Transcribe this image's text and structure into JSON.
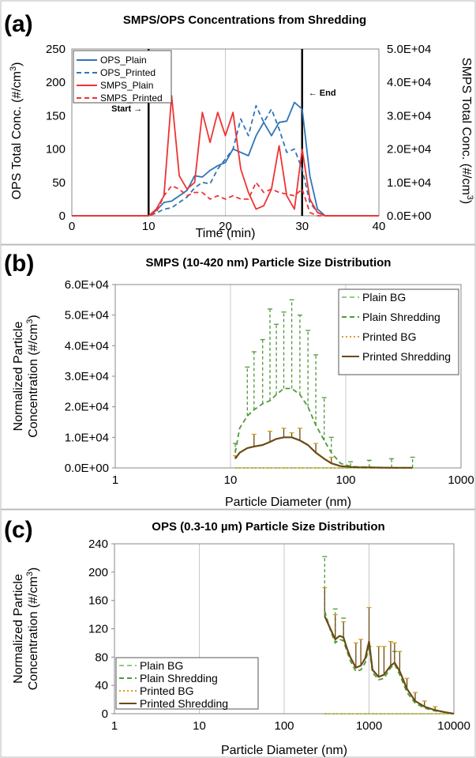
{
  "chart_data": [
    {
      "panel": "(a)",
      "type": "line",
      "title": "SMPS/OPS Concentrations from Shredding",
      "xlabel": "Time (min)",
      "ylabel_left": "OPS Total Conc. (#/cm³)",
      "ylabel_right": "SMPS Total Conc. (#/cm³)",
      "xlim": [
        0,
        40
      ],
      "ylim_left": [
        0,
        250
      ],
      "ylim_right": [
        0,
        50000
      ],
      "x_ticks": [
        "0",
        "10",
        "20",
        "30",
        "40"
      ],
      "y_ticks_left": [
        "0",
        "50",
        "100",
        "150",
        "200",
        "250"
      ],
      "y_ticks_right": [
        "0.0E+00",
        "1.0E+04",
        "2.0E+04",
        "3.0E+04",
        "4.0E+04",
        "5.0E+04"
      ],
      "grid": "vertical",
      "legend_position": "top-left",
      "vlines": [
        10,
        30
      ],
      "annotations": [
        "Start →",
        "← End"
      ],
      "colors": {
        "ops": "#2e75b6",
        "smps": "#ee3333",
        "left_axis": "#4a90d9",
        "right_axis": "#ee3333"
      },
      "series": [
        {
          "name": "OPS_Plain",
          "axis": "left",
          "style": "solid",
          "x": [
            0,
            10,
            11,
            12,
            13,
            14,
            15,
            16,
            17,
            18,
            19,
            20,
            21,
            22,
            23,
            24,
            25,
            26,
            27,
            28,
            29,
            30,
            31,
            32,
            33,
            34,
            40
          ],
          "y": [
            0,
            0,
            8,
            20,
            22,
            30,
            38,
            60,
            58,
            68,
            75,
            80,
            100,
            95,
            90,
            120,
            140,
            120,
            140,
            142,
            170,
            160,
            60,
            10,
            0,
            0,
            0
          ]
        },
        {
          "name": "OPS_Printed",
          "axis": "left",
          "style": "dashed",
          "x": [
            0,
            10,
            11,
            12,
            13,
            14,
            15,
            16,
            17,
            18,
            19,
            20,
            21,
            22,
            23,
            24,
            25,
            26,
            27,
            28,
            29,
            30,
            31,
            32,
            33,
            34,
            40
          ],
          "y": [
            0,
            0,
            4,
            10,
            12,
            20,
            28,
            42,
            50,
            48,
            70,
            85,
            100,
            145,
            120,
            165,
            140,
            160,
            130,
            95,
            100,
            70,
            20,
            5,
            0,
            0,
            0
          ]
        },
        {
          "name": "SMPS_Plain",
          "axis": "right",
          "style": "solid",
          "x": [
            0,
            10,
            11,
            12,
            13,
            14,
            15,
            16,
            17,
            18,
            19,
            20,
            21,
            22,
            23,
            24,
            25,
            26,
            27,
            28,
            29,
            30,
            31,
            32,
            33,
            40
          ],
          "y": [
            0,
            0,
            2000,
            6000,
            36000,
            12000,
            8000,
            10000,
            31000,
            22000,
            31000,
            24000,
            31000,
            14000,
            7000,
            2000,
            3000,
            8000,
            21000,
            6000,
            2000,
            20000,
            5000,
            1000,
            0,
            0
          ]
        },
        {
          "name": "SMPS_Printed",
          "axis": "right",
          "style": "dashed",
          "x": [
            0,
            10,
            11,
            12,
            13,
            14,
            15,
            16,
            17,
            18,
            19,
            20,
            21,
            22,
            23,
            24,
            25,
            26,
            27,
            28,
            29,
            30,
            31,
            32,
            40
          ],
          "y": [
            0,
            0,
            1000,
            6000,
            9000,
            8000,
            6000,
            7000,
            7000,
            5000,
            6000,
            5000,
            6000,
            5000,
            5000,
            10000,
            7000,
            8000,
            7000,
            6500,
            6000,
            8000,
            1000,
            0,
            0
          ]
        }
      ]
    },
    {
      "panel": "(b)",
      "type": "line",
      "title": "SMPS (10-420 nm) Particle Size Distribution",
      "xlabel": "Particle Diameter (nm)",
      "ylabel": "Normalized Particle Concentration (#/cm³)",
      "xscale": "log",
      "xlim": [
        1,
        1000
      ],
      "ylim": [
        0,
        60000
      ],
      "x_ticks": [
        "1",
        "10",
        "100",
        "1000"
      ],
      "y_ticks": [
        "0.0E+00",
        "1.0E+04",
        "2.0E+04",
        "3.0E+04",
        "4.0E+04",
        "5.0E+04",
        "6.0E+04"
      ],
      "grid": "vertical",
      "legend_position": "top-right",
      "colors": {
        "plain_bg": "#8fcf7d",
        "plain_shred": "#4f9a3a",
        "printed_bg": "#d4a017",
        "printed_shred": "#6b4a12"
      },
      "series": [
        {
          "name": "Plain BG",
          "style": "dashed",
          "x": [
            11,
            20,
            50,
            100,
            200,
            380
          ],
          "y": [
            0,
            0,
            0,
            0,
            0,
            0
          ]
        },
        {
          "name": "Plain Shredding",
          "style": "dashed",
          "x": [
            11,
            12,
            14,
            16,
            19,
            22,
            25,
            29,
            34,
            40,
            47,
            55,
            65,
            75,
            90,
            110,
            130,
            160,
            200,
            250,
            320,
            380
          ],
          "y": [
            5000,
            13000,
            17000,
            19000,
            21000,
            22000,
            24000,
            26000,
            26000,
            24000,
            20000,
            14000,
            9000,
            5000,
            1500,
            500,
            300,
            200,
            100,
            50,
            50,
            50
          ]
        },
        {
          "name": "Printed BG",
          "style": "dotted",
          "x": [
            11,
            20,
            50,
            100,
            200,
            380
          ],
          "y": [
            0,
            0,
            0,
            0,
            0,
            0
          ]
        },
        {
          "name": "Printed Shredding",
          "style": "solid",
          "x": [
            11,
            12,
            14,
            16,
            19,
            22,
            25,
            29,
            34,
            40,
            47,
            55,
            65,
            75,
            90,
            110,
            130,
            160,
            200,
            250,
            320,
            380
          ],
          "y": [
            3000,
            5000,
            6500,
            7000,
            7500,
            8500,
            9500,
            10000,
            10000,
            9000,
            7500,
            5000,
            3000,
            1500,
            600,
            300,
            200,
            150,
            100,
            50,
            50,
            50
          ]
        }
      ],
      "errorbars": {
        "plain": {
          "x": [
            11,
            14,
            16,
            19,
            22,
            25,
            29,
            34,
            40,
            47,
            55,
            65,
            75,
            110,
            160,
            250,
            380
          ],
          "top": [
            8000,
            33000,
            38000,
            42000,
            52000,
            47000,
            51000,
            55000,
            50000,
            45000,
            37000,
            23000,
            10000,
            2000,
            2500,
            3000,
            3500
          ]
        },
        "printed": {
          "x": [
            11,
            16,
            22,
            29,
            34,
            40,
            55,
            75
          ],
          "top": [
            4000,
            11000,
            12000,
            13000,
            11500,
            13000,
            8000,
            3500
          ]
        }
      }
    },
    {
      "panel": "(c)",
      "type": "line",
      "title": "OPS (0.3-10 µm) Particle Size Distribution",
      "xlabel": "Particle Diameter (nm)",
      "ylabel": "Normalized Particle Concentration (#/cm³)",
      "xscale": "log",
      "xlim": [
        1,
        10000
      ],
      "ylim": [
        0,
        240
      ],
      "x_ticks": [
        "1",
        "10",
        "100",
        "1000",
        "10000"
      ],
      "y_ticks": [
        "0",
        "40",
        "80",
        "120",
        "160",
        "200",
        "240"
      ],
      "grid": "vertical",
      "legend_position": "bottom-left",
      "colors": {
        "plain_bg": "#8fcf7d",
        "plain_shred": "#4f9a3a",
        "printed_bg": "#d4a017",
        "printed_shred": "#6b4a12"
      },
      "series": [
        {
          "name": "Plain BG",
          "style": "dashed",
          "x": [
            300,
            1000,
            3000,
            10000
          ],
          "y": [
            0,
            0,
            0,
            0
          ]
        },
        {
          "name": "Plain Shredding",
          "style": "dashed",
          "x": [
            300,
            350,
            400,
            450,
            500,
            550,
            600,
            700,
            800,
            900,
            1000,
            1100,
            1300,
            1500,
            1800,
            2000,
            2300,
            2800,
            3500,
            4500,
            6000,
            8000,
            10000
          ],
          "y": [
            145,
            118,
            100,
            105,
            103,
            88,
            75,
            60,
            62,
            72,
            95,
            58,
            48,
            50,
            65,
            70,
            55,
            30,
            15,
            8,
            4,
            2,
            0
          ]
        },
        {
          "name": "Printed BG",
          "style": "dotted",
          "x": [
            300,
            1000,
            3000,
            10000
          ],
          "y": [
            0,
            0,
            0,
            0
          ]
        },
        {
          "name": "Printed Shredding",
          "style": "solid",
          "x": [
            300,
            350,
            400,
            450,
            500,
            550,
            600,
            700,
            800,
            900,
            1000,
            1100,
            1300,
            1500,
            1800,
            2000,
            2300,
            2800,
            3500,
            4500,
            6000,
            8000,
            10000
          ],
          "y": [
            138,
            120,
            105,
            110,
            108,
            92,
            80,
            65,
            68,
            78,
            102,
            62,
            52,
            55,
            68,
            72,
            60,
            35,
            18,
            10,
            5,
            2,
            0
          ]
        }
      ],
      "errorbars": {
        "plain": {
          "x": [
            300,
            400,
            500,
            1000,
            2000
          ],
          "top": [
            222,
            148,
            135,
            95,
            88
          ]
        },
        "printed": {
          "x": [
            300,
            400,
            500,
            700,
            800,
            1000,
            1300,
            1500,
            1800,
            2000,
            2300,
            2800,
            3500,
            4500,
            6000
          ],
          "top": [
            178,
            140,
            130,
            100,
            105,
            150,
            95,
            95,
            102,
            100,
            88,
            50,
            30,
            18,
            10
          ]
        }
      }
    }
  ]
}
